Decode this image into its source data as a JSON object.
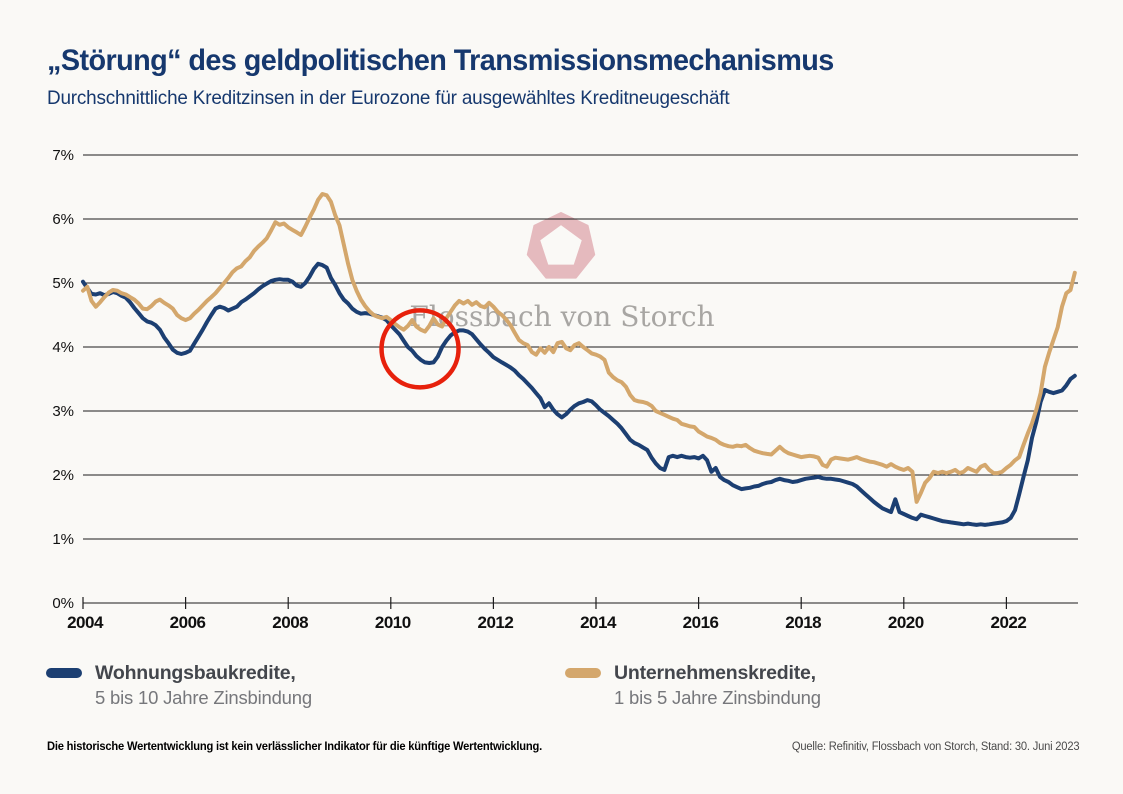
{
  "header": {
    "title": "„Störung“ des geldpolitischen Transmissionsmechanismus",
    "subtitle": "Durchschnittliche Kreditzinsen in der Eurozone für ausgewähltes Kreditneugeschäft"
  },
  "legend": {
    "items": [
      {
        "title": "Wohnungsbaukredite,",
        "subtitle": "5 bis 10 Jahre Zinsbindung",
        "color": "#1c3f72"
      },
      {
        "title": "Unternehmenskredite,",
        "subtitle": "1 bis 5 Jahre Zinsbindung",
        "color": "#d4a76c"
      }
    ]
  },
  "footer": {
    "disclaimer": "Die historische Wertentwicklung ist kein verlässlicher Indikator für die künftige Wertentwicklung.",
    "source": "Quelle: Refinitiv, Flossbach von Storch, Stand: 30. Juni 2023"
  },
  "watermark": {
    "text": "Flossbach von Storch",
    "text_color": "#a8a6a3",
    "logo_color": "#e4b5ba"
  },
  "chart_data": {
    "type": "line",
    "title": "„Störung“ des geldpolitischen Transmissionsmechanismus",
    "subtitle": "Durchschnittliche Kreditzinsen in der Eurozone für ausgewähltes Kreditneugeschäft",
    "x_interval": "monthly",
    "x_start_year": 2004,
    "x_end": "2023-05",
    "x_tick_labels": [
      "2004",
      "2006",
      "2008",
      "2010",
      "2012",
      "2014",
      "2016",
      "2018",
      "2020",
      "2022"
    ],
    "y_tick_labels": [
      "0%",
      "1%",
      "2%",
      "3%",
      "4%",
      "5%",
      "6%",
      "7%"
    ],
    "ylim": [
      0,
      7
    ],
    "grid": "horizontal",
    "legend_position": "bottom",
    "annotations": {
      "red_circle": {
        "x_year": 2010.57,
        "y_value": 3.97,
        "radius_px": 38.5,
        "color": "#e7210c"
      },
      "watermark": "Flossbach von Storch"
    },
    "series": [
      {
        "name": "Wohnungsbaukredite, 5 bis 10 Jahre Zinsbindung",
        "color": "#1c3f72",
        "values": [
          5.02,
          4.92,
          4.83,
          4.82,
          4.84,
          4.81,
          4.83,
          4.86,
          4.84,
          4.8,
          4.77,
          4.7,
          4.61,
          4.53,
          4.45,
          4.4,
          4.38,
          4.34,
          4.27,
          4.15,
          4.06,
          3.96,
          3.91,
          3.89,
          3.91,
          3.94,
          4.05,
          4.16,
          4.27,
          4.39,
          4.5,
          4.6,
          4.63,
          4.61,
          4.57,
          4.6,
          4.63,
          4.7,
          4.74,
          4.79,
          4.84,
          4.9,
          4.95,
          4.99,
          5.03,
          5.05,
          5.06,
          5.05,
          5.05,
          5.02,
          4.96,
          4.94,
          5.0,
          5.1,
          5.22,
          5.3,
          5.28,
          5.24,
          5.08,
          4.97,
          4.84,
          4.74,
          4.68,
          4.6,
          4.55,
          4.52,
          4.53,
          4.52,
          4.5,
          4.48,
          4.46,
          4.42,
          4.34,
          4.27,
          4.2,
          4.1,
          4.0,
          3.94,
          3.86,
          3.8,
          3.76,
          3.75,
          3.76,
          3.85,
          4.0,
          4.1,
          4.18,
          4.23,
          4.26,
          4.26,
          4.24,
          4.2,
          4.12,
          4.04,
          3.97,
          3.91,
          3.84,
          3.8,
          3.76,
          3.72,
          3.68,
          3.63,
          3.56,
          3.5,
          3.43,
          3.36,
          3.28,
          3.2,
          3.06,
          3.12,
          3.02,
          2.95,
          2.9,
          2.95,
          3.02,
          3.08,
          3.12,
          3.14,
          3.17,
          3.15,
          3.09,
          3.02,
          2.97,
          2.92,
          2.86,
          2.8,
          2.73,
          2.64,
          2.55,
          2.5,
          2.47,
          2.43,
          2.39,
          2.27,
          2.18,
          2.11,
          2.08,
          2.28,
          2.3,
          2.28,
          2.3,
          2.28,
          2.27,
          2.28,
          2.26,
          2.3,
          2.23,
          2.05,
          2.11,
          1.97,
          1.92,
          1.89,
          1.84,
          1.81,
          1.78,
          1.79,
          1.8,
          1.82,
          1.83,
          1.86,
          1.88,
          1.89,
          1.92,
          1.94,
          1.92,
          1.91,
          1.89,
          1.9,
          1.92,
          1.94,
          1.95,
          1.96,
          1.97,
          1.95,
          1.94,
          1.94,
          1.93,
          1.92,
          1.9,
          1.88,
          1.86,
          1.82,
          1.76,
          1.7,
          1.64,
          1.58,
          1.53,
          1.48,
          1.45,
          1.42,
          1.62,
          1.42,
          1.39,
          1.36,
          1.33,
          1.31,
          1.38,
          1.36,
          1.34,
          1.32,
          1.3,
          1.28,
          1.27,
          1.26,
          1.25,
          1.24,
          1.23,
          1.24,
          1.23,
          1.22,
          1.23,
          1.22,
          1.23,
          1.24,
          1.25,
          1.26,
          1.28,
          1.33,
          1.45,
          1.7,
          1.97,
          2.23,
          2.58,
          2.83,
          3.14,
          3.33,
          3.3,
          3.28,
          3.3,
          3.32,
          3.4,
          3.5,
          3.55
        ]
      },
      {
        "name": "Unternehmenskredite, 1 bis 5 Jahre Zinsbindung",
        "color": "#d4a76c",
        "values": [
          4.88,
          4.94,
          4.72,
          4.63,
          4.7,
          4.78,
          4.85,
          4.89,
          4.88,
          4.84,
          4.82,
          4.78,
          4.74,
          4.68,
          4.6,
          4.59,
          4.64,
          4.71,
          4.74,
          4.69,
          4.65,
          4.6,
          4.5,
          4.45,
          4.42,
          4.45,
          4.52,
          4.58,
          4.65,
          4.72,
          4.78,
          4.84,
          4.92,
          5.0,
          5.08,
          5.17,
          5.23,
          5.26,
          5.34,
          5.4,
          5.5,
          5.57,
          5.63,
          5.7,
          5.82,
          5.95,
          5.91,
          5.93,
          5.87,
          5.83,
          5.79,
          5.75,
          5.88,
          6.02,
          6.15,
          6.3,
          6.39,
          6.37,
          6.27,
          6.06,
          5.9,
          5.6,
          5.3,
          5.05,
          4.88,
          4.74,
          4.64,
          4.56,
          4.5,
          4.47,
          4.45,
          4.47,
          4.42,
          4.36,
          4.31,
          4.27,
          4.33,
          4.42,
          4.32,
          4.27,
          4.24,
          4.33,
          4.45,
          4.35,
          4.32,
          4.45,
          4.55,
          4.65,
          4.72,
          4.68,
          4.72,
          4.66,
          4.7,
          4.64,
          4.62,
          4.69,
          4.63,
          4.55,
          4.5,
          4.43,
          4.34,
          4.22,
          4.11,
          4.06,
          4.03,
          3.92,
          3.88,
          3.98,
          3.91,
          4.0,
          3.92,
          4.06,
          4.08,
          3.98,
          3.95,
          4.03,
          4.06,
          4.0,
          3.95,
          3.9,
          3.88,
          3.85,
          3.8,
          3.6,
          3.53,
          3.48,
          3.45,
          3.38,
          3.25,
          3.17,
          3.15,
          3.14,
          3.12,
          3.08,
          3.0,
          2.97,
          2.94,
          2.91,
          2.88,
          2.86,
          2.8,
          2.78,
          2.76,
          2.75,
          2.68,
          2.64,
          2.6,
          2.58,
          2.55,
          2.5,
          2.47,
          2.45,
          2.44,
          2.46,
          2.45,
          2.47,
          2.42,
          2.38,
          2.36,
          2.34,
          2.33,
          2.32,
          2.38,
          2.44,
          2.38,
          2.34,
          2.32,
          2.3,
          2.28,
          2.29,
          2.3,
          2.29,
          2.27,
          2.16,
          2.13,
          2.24,
          2.27,
          2.26,
          2.25,
          2.24,
          2.26,
          2.28,
          2.25,
          2.23,
          2.21,
          2.2,
          2.18,
          2.16,
          2.13,
          2.17,
          2.13,
          2.1,
          2.08,
          2.11,
          2.05,
          1.58,
          1.72,
          1.88,
          1.95,
          2.05,
          2.03,
          2.05,
          2.03,
          2.05,
          2.08,
          2.03,
          2.05,
          2.11,
          2.08,
          2.05,
          2.13,
          2.16,
          2.08,
          2.03,
          2.03,
          2.05,
          2.11,
          2.16,
          2.23,
          2.28,
          2.47,
          2.65,
          2.81,
          3.02,
          3.28,
          3.69,
          3.91,
          4.11,
          4.31,
          4.63,
          4.84,
          4.89,
          5.16
        ]
      }
    ]
  }
}
